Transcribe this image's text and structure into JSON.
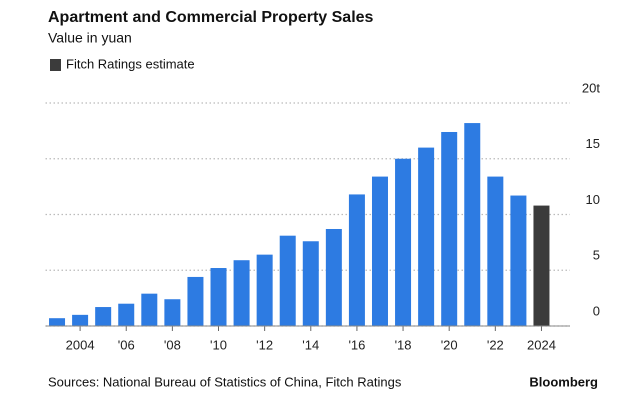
{
  "chart_data": {
    "type": "bar",
    "title": "Apartment and Commercial Property Sales",
    "subtitle": "Value in yuan",
    "legend": [
      {
        "name": "Fitch Ratings estimate",
        "color": "#3b3b3b"
      }
    ],
    "categories": [
      null,
      "2004",
      null,
      "'06",
      null,
      "'08",
      null,
      "'10",
      null,
      "'12",
      null,
      "'14",
      null,
      "'16",
      null,
      "'18",
      null,
      "'20",
      null,
      "'22",
      null,
      "2024"
    ],
    "values": [
      0.7,
      1.0,
      1.7,
      2.0,
      2.9,
      2.4,
      4.4,
      5.2,
      5.9,
      6.4,
      8.1,
      7.6,
      8.7,
      11.8,
      13.4,
      15.0,
      16.0,
      17.4,
      18.2,
      13.4,
      11.7,
      10.8
    ],
    "bar_colors": [
      "#2d7be2",
      "#2d7be2",
      "#2d7be2",
      "#2d7be2",
      "#2d7be2",
      "#2d7be2",
      "#2d7be2",
      "#2d7be2",
      "#2d7be2",
      "#2d7be2",
      "#2d7be2",
      "#2d7be2",
      "#2d7be2",
      "#2d7be2",
      "#2d7be2",
      "#2d7be2",
      "#2d7be2",
      "#2d7be2",
      "#2d7be2",
      "#2d7be2",
      "#2d7be2",
      "#3b3b3b"
    ],
    "ylim": [
      0,
      20
    ],
    "yticks": [
      0,
      5,
      10,
      15,
      {
        "value": 20,
        "label": "20t"
      }
    ],
    "grid": true,
    "source": "Sources: National Bureau of Statistics of China, Fitch Ratings",
    "brand": "Bloomberg"
  }
}
